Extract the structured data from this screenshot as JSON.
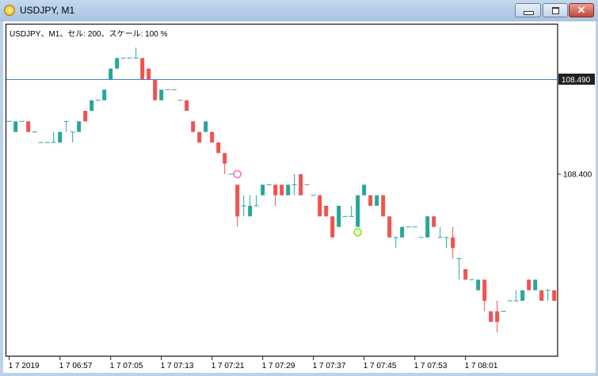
{
  "window": {
    "title": "USDJPY, M1",
    "buttons": [
      "minimize",
      "maximize",
      "close"
    ]
  },
  "chart_label": "USDJPY、M1、セル: 200、スケール: 100 %",
  "price_axis": {
    "ticks": [
      "108.400"
    ],
    "current_price_label": "108.490",
    "current_price": 108.49
  },
  "time_axis": {
    "ticks": [
      "1 7 2019",
      "1 7 06:57",
      "1 7 07:05",
      "1 7 07:13",
      "1 7 07:21",
      "1 7 07:29",
      "1 7 07:37",
      "1 7 07:45",
      "1 7 07:53",
      "1 7 08:01"
    ]
  },
  "colors": {
    "bull": "#26a69a",
    "bear": "#ef5350",
    "price_line": "#3c7fe0",
    "marker_sell": "#ff6fb0",
    "marker_buy": "#7cf000"
  },
  "chart_data": {
    "type": "candlestick",
    "timeframe": "M1",
    "symbol": "USDJPY",
    "fields": [
      "open",
      "high",
      "low",
      "close"
    ],
    "candles": [
      [
        108.45,
        108.45,
        108.45,
        108.45
      ],
      [
        108.44,
        108.45,
        108.44,
        108.45
      ],
      [
        108.45,
        108.45,
        108.45,
        108.45
      ],
      [
        108.45,
        108.45,
        108.44,
        108.44
      ],
      [
        108.44,
        108.44,
        108.44,
        108.44
      ],
      [
        108.43,
        108.43,
        108.43,
        108.43
      ],
      [
        108.43,
        108.43,
        108.43,
        108.43
      ],
      [
        108.43,
        108.44,
        108.43,
        108.43
      ],
      [
        108.43,
        108.44,
        108.43,
        108.44
      ],
      [
        108.45,
        108.45,
        108.44,
        108.45
      ],
      [
        108.44,
        108.44,
        108.43,
        108.44
      ],
      [
        108.44,
        108.45,
        108.44,
        108.45
      ],
      [
        108.46,
        108.46,
        108.45,
        108.45
      ],
      [
        108.46,
        108.47,
        108.46,
        108.47
      ],
      [
        108.47,
        108.47,
        108.47,
        108.47
      ],
      [
        108.47,
        108.48,
        108.47,
        108.48
      ],
      [
        108.49,
        108.5,
        108.49,
        108.5
      ],
      [
        108.5,
        108.51,
        108.5,
        108.51
      ],
      [
        108.51,
        108.51,
        108.51,
        108.51
      ],
      [
        108.51,
        108.51,
        108.51,
        108.51
      ],
      [
        108.51,
        108.52,
        108.51,
        108.51
      ],
      [
        108.51,
        108.51,
        108.49,
        108.49
      ],
      [
        108.5,
        108.5,
        108.49,
        108.49
      ],
      [
        108.49,
        108.49,
        108.47,
        108.47
      ],
      [
        108.47,
        108.48,
        108.47,
        108.48
      ],
      [
        108.48,
        108.48,
        108.48,
        108.48
      ],
      [
        108.48,
        108.48,
        108.48,
        108.48
      ],
      [
        108.47,
        108.47,
        108.47,
        108.47
      ],
      [
        108.47,
        108.47,
        108.46,
        108.46
      ],
      [
        108.45,
        108.45,
        108.44,
        108.44
      ],
      [
        108.44,
        108.44,
        108.43,
        108.43
      ],
      [
        108.44,
        108.45,
        108.44,
        108.45
      ],
      [
        108.44,
        108.44,
        108.43,
        108.43
      ],
      [
        108.43,
        108.43,
        108.42,
        108.42
      ],
      [
        108.42,
        108.42,
        108.4,
        108.41
      ],
      [
        108.4,
        108.4,
        108.4,
        108.4
      ],
      [
        108.39,
        108.39,
        108.35,
        108.36
      ],
      [
        108.37,
        108.38,
        108.36,
        108.37
      ],
      [
        108.36,
        108.38,
        108.36,
        108.37
      ],
      [
        108.37,
        108.38,
        108.37,
        108.37
      ],
      [
        108.38,
        108.39,
        108.38,
        108.39
      ],
      [
        108.39,
        108.39,
        108.39,
        108.39
      ],
      [
        108.39,
        108.39,
        108.37,
        108.38
      ],
      [
        108.39,
        108.39,
        108.38,
        108.38
      ],
      [
        108.38,
        108.39,
        108.38,
        108.39
      ],
      [
        108.39,
        108.4,
        108.38,
        108.39
      ],
      [
        108.4,
        108.4,
        108.38,
        108.38
      ],
      [
        108.39,
        108.39,
        108.39,
        108.39
      ],
      [
        108.38,
        108.38,
        108.38,
        108.38
      ],
      [
        108.38,
        108.38,
        108.36,
        108.36
      ],
      [
        108.37,
        108.37,
        108.36,
        108.36
      ],
      [
        108.36,
        108.36,
        108.34,
        108.34
      ],
      [
        108.35,
        108.37,
        108.35,
        108.37
      ],
      [
        108.36,
        108.36,
        108.36,
        108.36
      ],
      [
        108.36,
        108.37,
        108.36,
        108.36
      ],
      [
        108.35,
        108.38,
        108.35,
        108.38
      ],
      [
        108.38,
        108.39,
        108.38,
        108.39
      ],
      [
        108.38,
        108.38,
        108.37,
        108.37
      ],
      [
        108.37,
        108.38,
        108.37,
        108.38
      ],
      [
        108.38,
        108.38,
        108.36,
        108.36
      ],
      [
        108.36,
        108.36,
        108.34,
        108.34
      ],
      [
        108.34,
        108.34,
        108.33,
        108.34
      ],
      [
        108.34,
        108.35,
        108.34,
        108.35
      ],
      [
        108.35,
        108.35,
        108.35,
        108.35
      ],
      [
        108.35,
        108.35,
        108.35,
        108.35
      ],
      [
        108.34,
        108.34,
        108.34,
        108.34
      ],
      [
        108.34,
        108.36,
        108.34,
        108.36
      ],
      [
        108.36,
        108.36,
        108.35,
        108.35
      ],
      [
        108.34,
        108.35,
        108.34,
        108.34
      ],
      [
        108.34,
        108.34,
        108.33,
        108.34
      ],
      [
        108.34,
        108.35,
        108.32,
        108.33
      ],
      [
        108.32,
        108.32,
        108.3,
        108.32
      ],
      [
        108.31,
        108.31,
        108.3,
        108.3
      ],
      [
        108.3,
        108.3,
        108.3,
        108.3
      ],
      [
        108.29,
        108.3,
        108.29,
        108.3
      ],
      [
        108.3,
        108.3,
        108.27,
        108.28
      ],
      [
        108.27,
        108.27,
        108.26,
        108.26
      ],
      [
        108.27,
        108.28,
        108.25,
        108.26
      ],
      [
        108.27,
        108.27,
        108.27,
        108.27
      ],
      [
        108.28,
        108.28,
        108.28,
        108.28
      ],
      [
        108.28,
        108.29,
        108.28,
        108.28
      ],
      [
        108.28,
        108.29,
        108.28,
        108.29
      ],
      [
        108.3,
        108.3,
        108.29,
        108.29
      ],
      [
        108.29,
        108.3,
        108.29,
        108.3
      ],
      [
        108.29,
        108.29,
        108.28,
        108.28
      ],
      [
        108.29,
        108.29,
        108.28,
        108.29
      ],
      [
        108.29,
        108.29,
        108.28,
        108.28
      ]
    ],
    "horizontal_line": 108.49,
    "markers": [
      {
        "type": "sell",
        "candle_index": 36,
        "price": 108.4
      },
      {
        "type": "buy",
        "candle_index": 55,
        "price": 108.345
      }
    ],
    "grid": false
  }
}
